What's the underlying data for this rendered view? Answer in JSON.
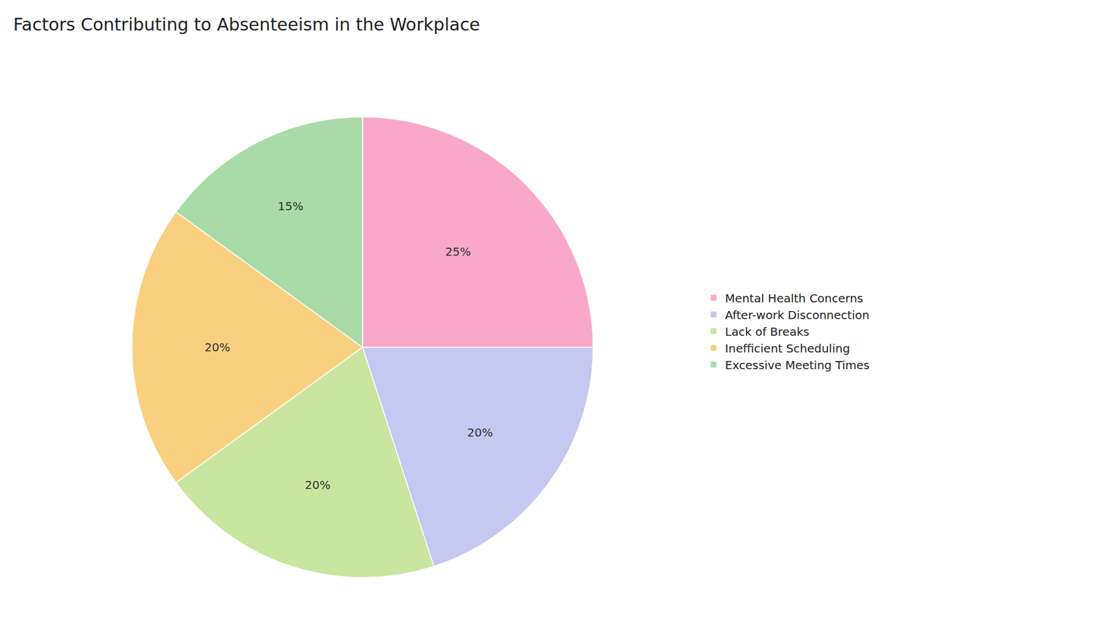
{
  "chart_data": {
    "type": "pie",
    "title": "Factors Contributing to Absenteeism in the Workplace",
    "categories": [
      "Mental Health Concerns",
      "After-work Disconnection",
      "Lack of Breaks",
      "Inefficient Scheduling",
      "Excessive Meeting Times"
    ],
    "values": [
      25,
      20,
      20,
      20,
      15
    ],
    "value_labels": [
      "25%",
      "20%",
      "20%",
      "20%",
      "15%"
    ],
    "colors": [
      "#F9A8C9",
      "#C5C8F0",
      "#C8E6A0",
      "#F9D080",
      "#A8DBA8"
    ],
    "data_labels": true,
    "legend": "right"
  }
}
